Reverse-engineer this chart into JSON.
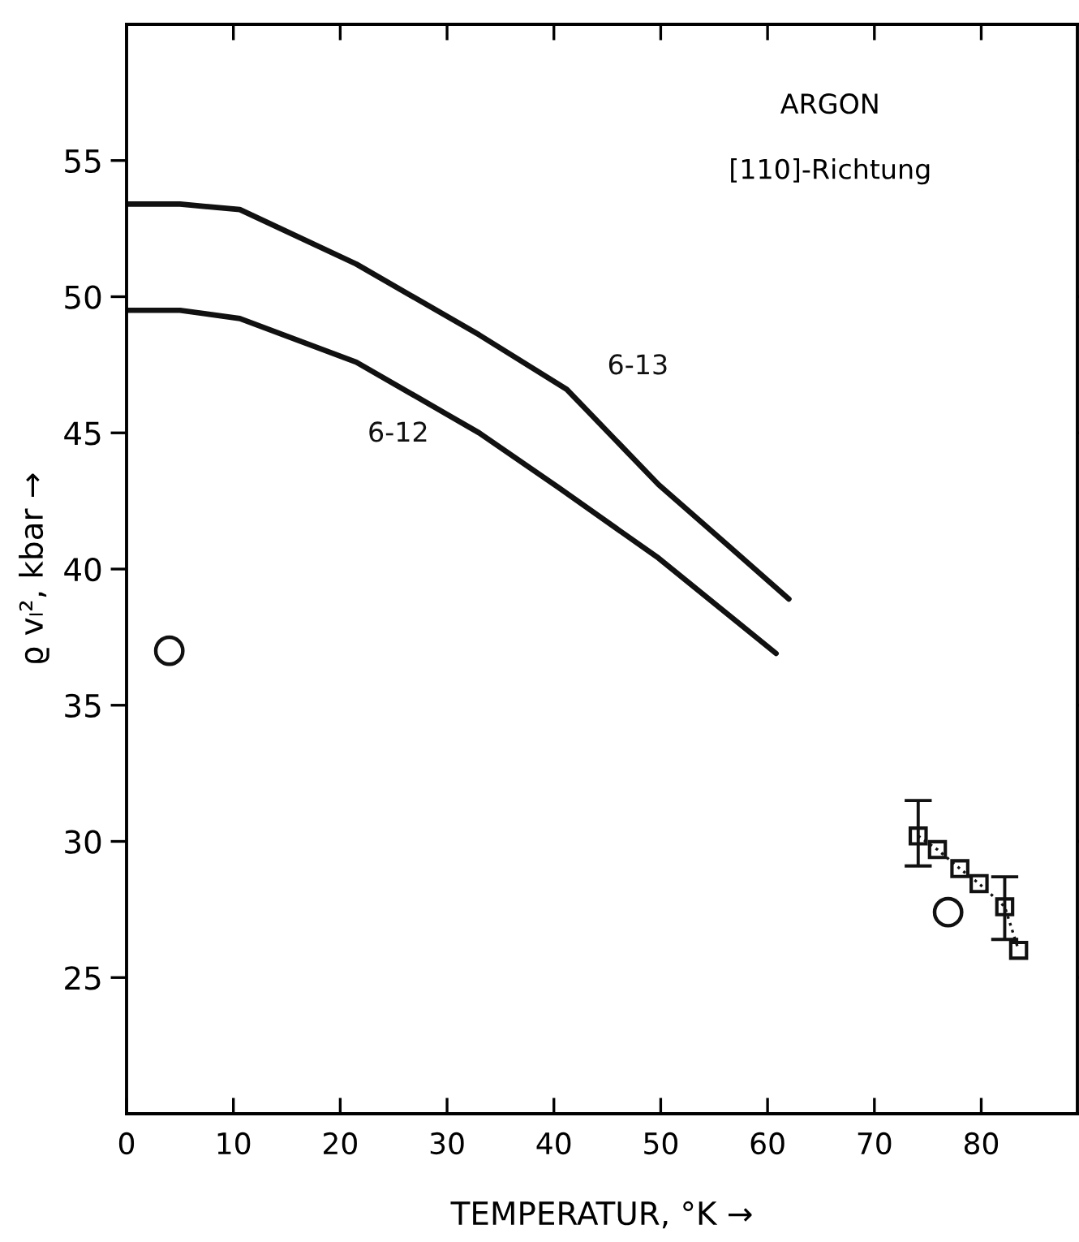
{
  "chart_data": {
    "type": "line",
    "xlabel": "TEMPERATUR, °K →",
    "ylabel": "ϱ vₗ², kbar →",
    "xlim": [
      0,
      89
    ],
    "ylim": [
      20,
      60
    ],
    "xticks": [
      0,
      10,
      20,
      30,
      40,
      50,
      60,
      70,
      80
    ],
    "yticks": [
      25,
      30,
      35,
      40,
      45,
      50,
      55
    ],
    "grid": false,
    "legend": false,
    "series": [
      {
        "name": "6-13",
        "color": "#111111",
        "line_style": "solid",
        "marker": "none",
        "x": [
          0,
          5,
          10.6,
          21.5,
          33,
          41.2,
          49.8,
          56.2,
          62
        ],
        "values": [
          53.4,
          53.4,
          53.2,
          51.2,
          48.6,
          46.6,
          43.1,
          40.9,
          38.9
        ]
      },
      {
        "name": "6-12",
        "color": "#111111",
        "line_style": "solid",
        "marker": "none",
        "x": [
          0,
          5,
          10.6,
          21.5,
          33,
          40.4,
          49.8,
          60.8
        ],
        "values": [
          49.5,
          49.5,
          49.2,
          47.6,
          45,
          43,
          40.4,
          36.9
        ]
      },
      {
        "type": "scatter",
        "color": "#111111",
        "marker": "circle",
        "x": [
          4.0,
          76.9
        ],
        "values": [
          37.0,
          27.4
        ]
      },
      {
        "color": "#111111",
        "line_style": "dotted",
        "marker": "square",
        "x": [
          74.1,
          75.9,
          78.0,
          79.8,
          82.2,
          83.5
        ],
        "values": [
          30.2,
          29.7,
          29.0,
          28.45,
          27.6,
          26.0
        ],
        "errors": [
          [
            29.1,
            31.5
          ],
          null,
          null,
          null,
          [
            26.4,
            28.7
          ],
          null
        ]
      }
    ],
    "annotations": [
      "ARGON",
      "[110]-Richtung"
    ]
  }
}
